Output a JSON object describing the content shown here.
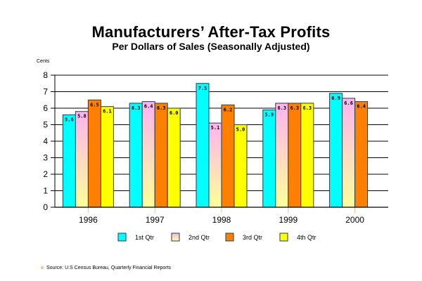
{
  "chart_data": {
    "type": "bar",
    "title": "Manufacturers’ After-Tax Profits",
    "subtitle": "Per Dollars of Sales (Seasonally Adjusted)",
    "xlabel": "",
    "ylabel": "Cents",
    "ylim": [
      0,
      8
    ],
    "yticks": [
      0,
      1,
      2,
      3,
      4,
      5,
      6,
      7,
      8
    ],
    "grid": true,
    "legend_position": "bottom",
    "categories": [
      "1996",
      "1997",
      "1998",
      "1999",
      "2000"
    ],
    "series": [
      {
        "name": "1st Qtr",
        "color": "#00ffff",
        "values": [
          5.6,
          6.3,
          7.5,
          5.9,
          6.9
        ]
      },
      {
        "name": "2nd Qtr",
        "color": "#ffb3f0",
        "color_bottom": "#ffff99",
        "values": [
          5.8,
          6.4,
          5.1,
          6.3,
          6.6
        ]
      },
      {
        "name": "3rd Qtr",
        "color": "#ff8000",
        "values": [
          6.5,
          6.3,
          6.2,
          6.3,
          6.4
        ]
      },
      {
        "name": "4th Qtr",
        "color": "#ffff00",
        "values": [
          6.1,
          6.0,
          5.0,
          6.3,
          null
        ]
      }
    ],
    "source": "Source: U.S Census Bureau, Quarterly Financial Reports"
  }
}
